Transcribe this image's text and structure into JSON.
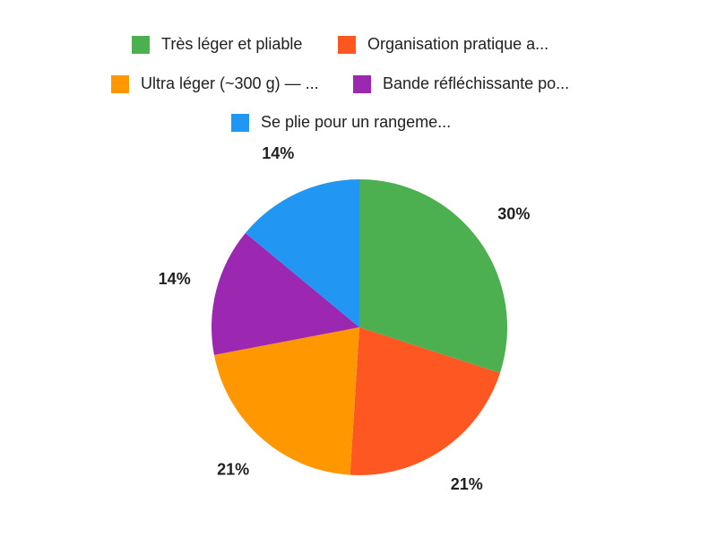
{
  "chart_data": {
    "type": "pie",
    "categories": [
      "Très léger et pliable",
      "Organisation pratique a...",
      "Ultra léger (~300 g) — ...",
      "Bande réfléchissante po...",
      "Se plie pour un rangeme..."
    ],
    "values": [
      30,
      21,
      21,
      14,
      14
    ],
    "value_labels": [
      "30%",
      "21%",
      "21%",
      "14%",
      "14%"
    ],
    "colors": [
      "#4caf50",
      "#ff5722",
      "#ff9800",
      "#9c27b0",
      "#2196f3"
    ],
    "legend": "top"
  }
}
